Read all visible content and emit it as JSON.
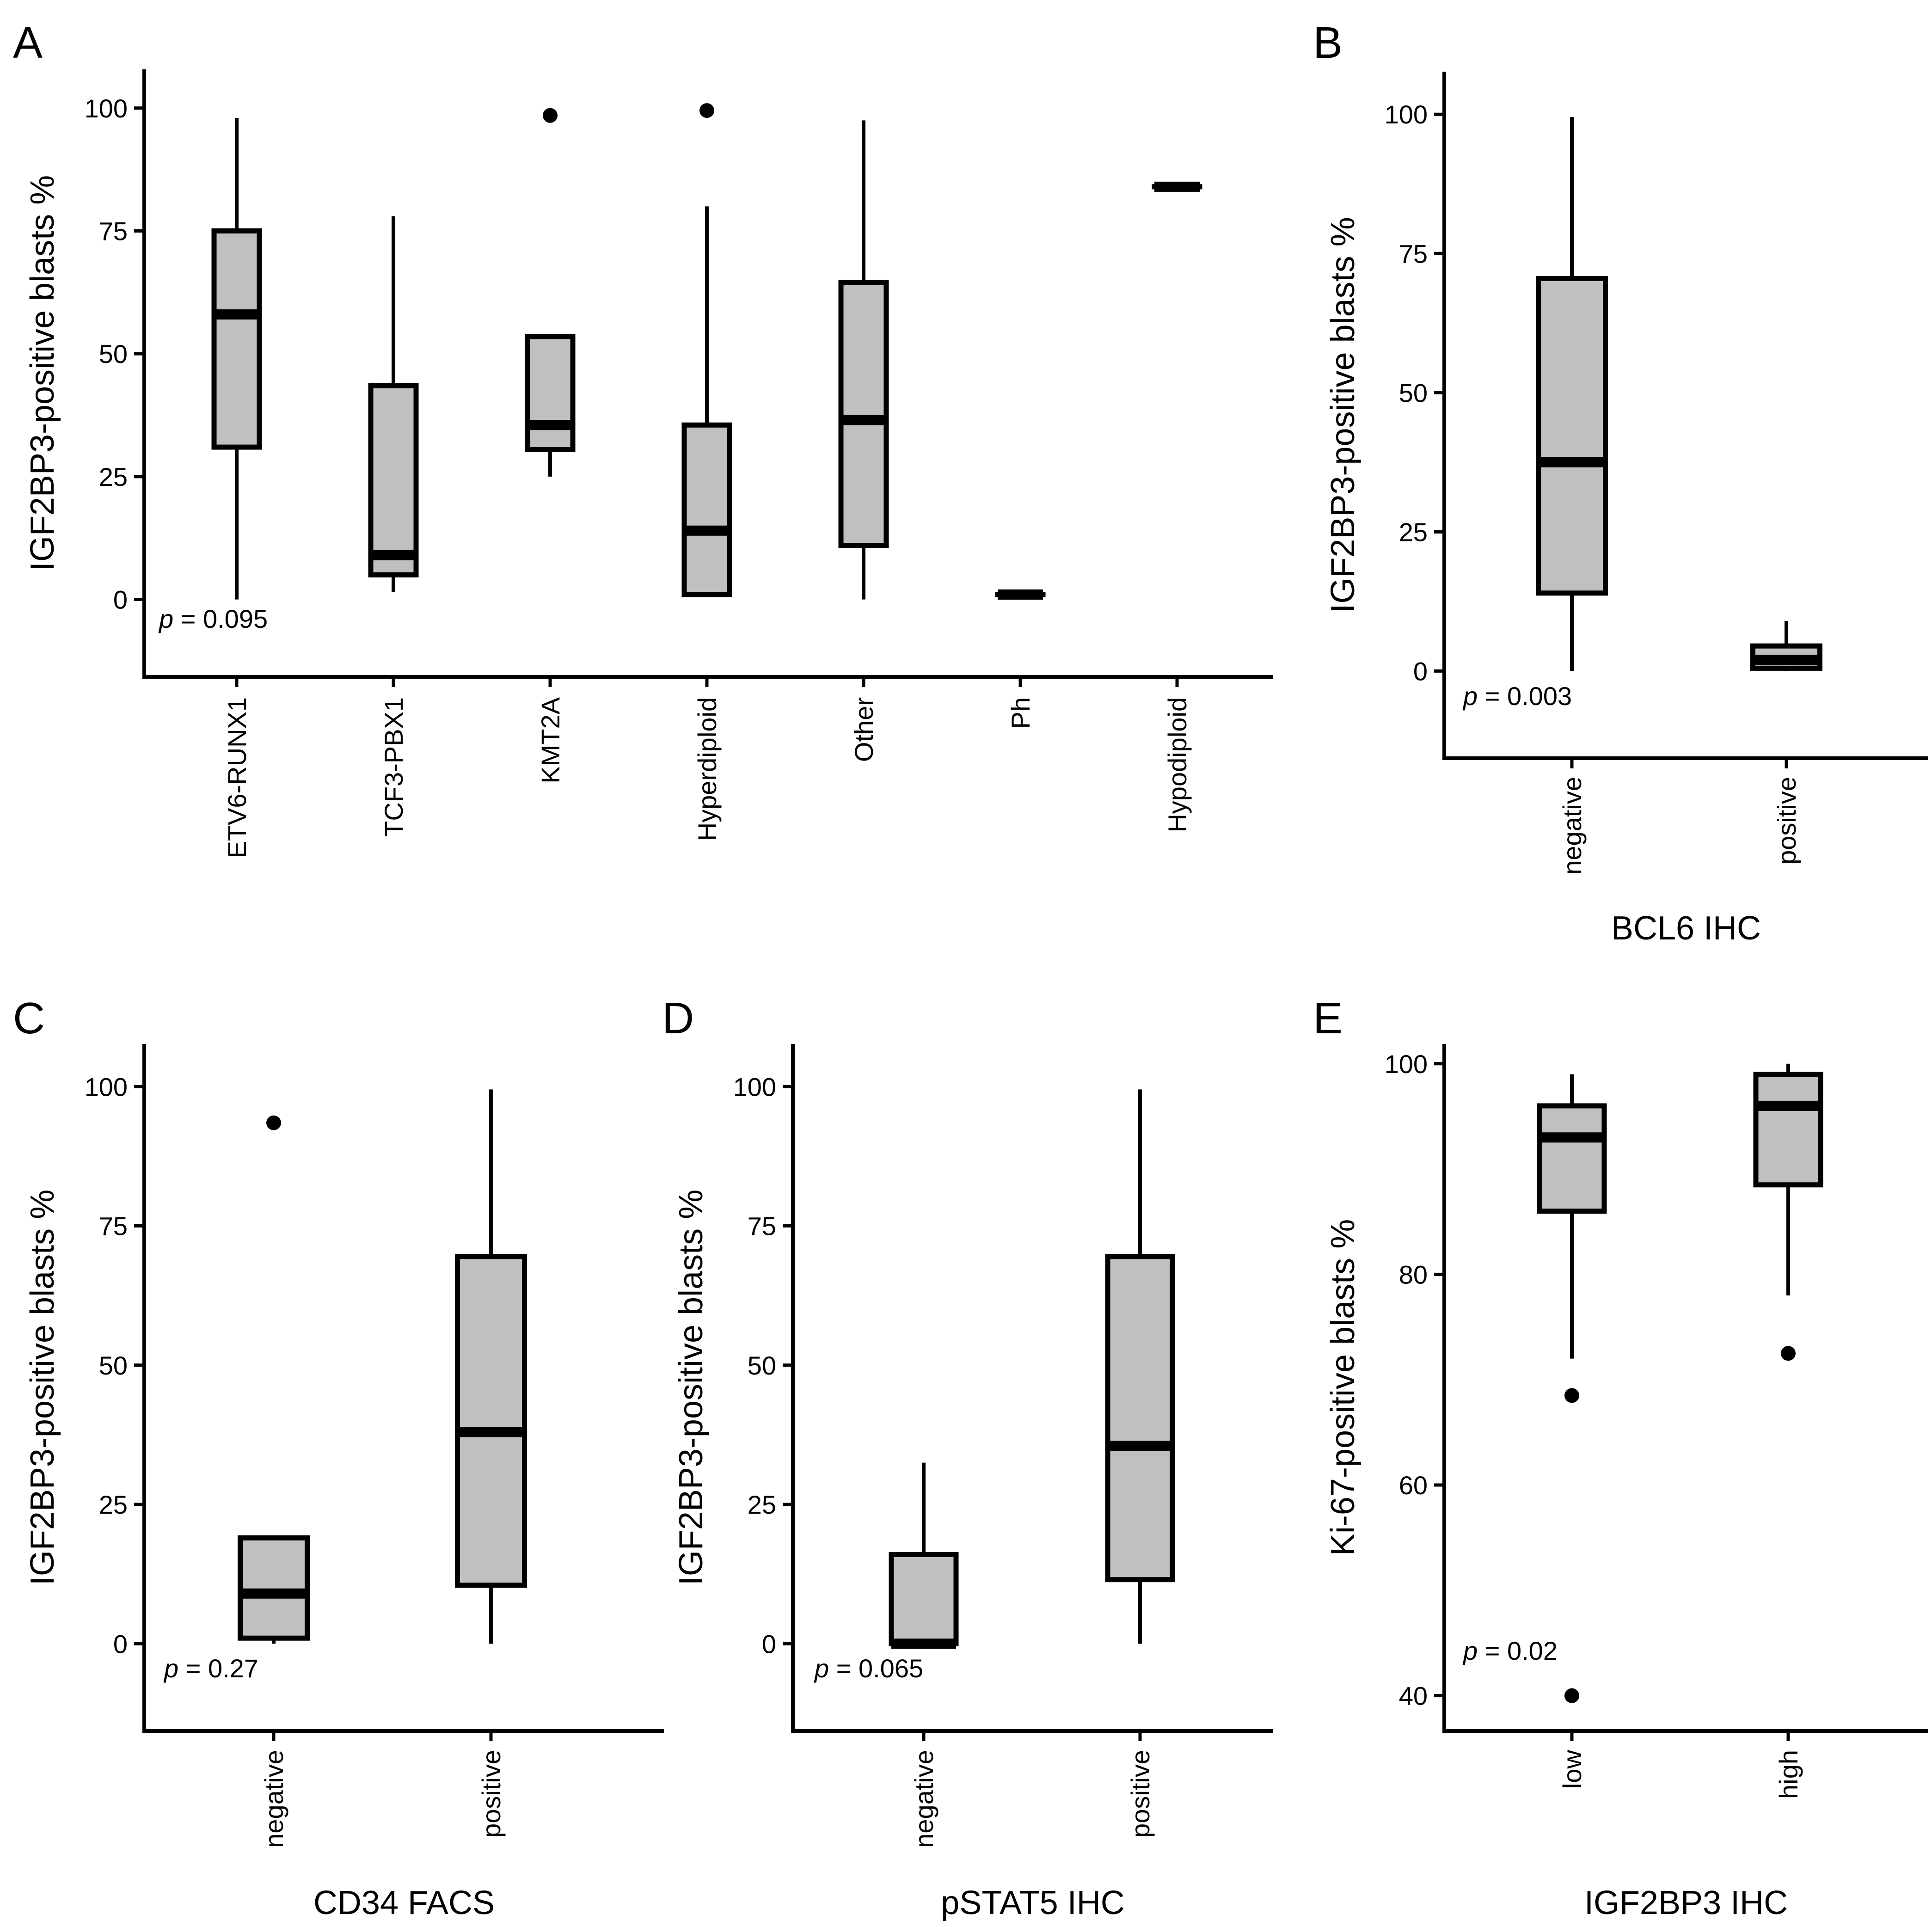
{
  "figure": {
    "panels": [
      "A",
      "B",
      "C",
      "D",
      "E"
    ]
  },
  "chart_data": [
    {
      "panel": "A",
      "type": "box",
      "ylabel": "IGF2BP3-positive blasts %",
      "xlabel": "",
      "ylim": [
        -15,
        106
      ],
      "yticks": [
        0,
        25,
        50,
        75,
        100
      ],
      "p_label": "p",
      "p_value": "= 0.095",
      "categories": [
        "ETV6-RUNX1",
        "TCF3-PBX1",
        "KMT2A",
        "Hyperdiploid",
        "Other",
        "Ph",
        "Hypodiploid"
      ],
      "boxes": [
        {
          "category": "ETV6-RUNX1",
          "lower_whisker": 0,
          "q1": 31,
          "median": 58,
          "q3": 75,
          "upper_whisker": 98,
          "outliers": []
        },
        {
          "category": "TCF3-PBX1",
          "lower_whisker": 1.5,
          "q1": 5,
          "median": 9,
          "q3": 43.5,
          "upper_whisker": 78,
          "outliers": []
        },
        {
          "category": "KMT2A",
          "lower_whisker": 25,
          "q1": 30.5,
          "median": 35.5,
          "q3": 53.5,
          "upper_whisker": 53.5,
          "outliers": [
            98.5
          ]
        },
        {
          "category": "Hyperdiploid",
          "lower_whisker": 0.5,
          "q1": 1,
          "median": 14,
          "q3": 35.5,
          "upper_whisker": 80,
          "outliers": [
            99.5
          ]
        },
        {
          "category": "Other",
          "lower_whisker": 0,
          "q1": 11,
          "median": 36.5,
          "q3": 64.5,
          "upper_whisker": 97.5,
          "outliers": []
        },
        {
          "category": "Ph",
          "lower_whisker": 1,
          "q1": 1,
          "median": 1,
          "q3": 1,
          "upper_whisker": 1,
          "outliers": []
        },
        {
          "category": "Hypodiploid",
          "lower_whisker": 84,
          "q1": 84,
          "median": 84,
          "q3": 84,
          "upper_whisker": 84,
          "outliers": []
        }
      ]
    },
    {
      "panel": "B",
      "type": "box",
      "ylabel": "IGF2BP3-positive blasts %",
      "xlabel": "BCL6 IHC",
      "ylim": [
        -15,
        106
      ],
      "yticks": [
        0,
        25,
        50,
        75,
        100
      ],
      "p_label": "p",
      "p_value": "= 0.003",
      "categories": [
        "negative",
        "positive"
      ],
      "boxes": [
        {
          "category": "negative",
          "lower_whisker": 0,
          "q1": 14,
          "median": 37.5,
          "q3": 70.5,
          "upper_whisker": 99.5,
          "outliers": []
        },
        {
          "category": "positive",
          "lower_whisker": 0,
          "q1": 0.5,
          "median": 2,
          "q3": 4.5,
          "upper_whisker": 9,
          "outliers": []
        }
      ]
    },
    {
      "panel": "C",
      "type": "box",
      "ylabel": "IGF2BP3-positive blasts %",
      "xlabel": "CD34 FACS",
      "ylim": [
        -15,
        106
      ],
      "yticks": [
        0,
        25,
        50,
        75,
        100
      ],
      "p_label": "p",
      "p_value": "= 0.27",
      "categories": [
        "negative",
        "positive"
      ],
      "boxes": [
        {
          "category": "negative",
          "lower_whisker": 0,
          "q1": 1,
          "median": 9,
          "q3": 19,
          "upper_whisker": 19,
          "outliers": [
            93.5
          ]
        },
        {
          "category": "positive",
          "lower_whisker": 0,
          "q1": 10.5,
          "median": 38,
          "q3": 69.5,
          "upper_whisker": 99.5,
          "outliers": []
        }
      ]
    },
    {
      "panel": "D",
      "type": "box",
      "ylabel": "IGF2BP3-positive blasts %",
      "xlabel": "pSTAT5 IHC",
      "ylim": [
        -15,
        106
      ],
      "yticks": [
        0,
        25,
        50,
        75,
        100
      ],
      "p_label": "p",
      "p_value": "= 0.065",
      "categories": [
        "negative",
        "positive"
      ],
      "boxes": [
        {
          "category": "negative",
          "lower_whisker": 0,
          "q1": 0,
          "median": 0,
          "q3": 16,
          "upper_whisker": 32.5,
          "outliers": []
        },
        {
          "category": "positive",
          "lower_whisker": 0,
          "q1": 11.5,
          "median": 35.5,
          "q3": 69.5,
          "upper_whisker": 99.5,
          "outliers": []
        }
      ]
    },
    {
      "panel": "E",
      "type": "box",
      "ylabel": "Ki-67-positive blasts %",
      "xlabel": "IGF2BP3 IHC",
      "ylim": [
        37,
        101
      ],
      "yticks": [
        40,
        60,
        80,
        100
      ],
      "p_label": "p",
      "p_value": "= 0.02",
      "categories": [
        "low",
        "high"
      ],
      "boxes": [
        {
          "category": "low",
          "lower_whisker": 72,
          "q1": 86,
          "median": 93,
          "q3": 96,
          "upper_whisker": 99,
          "outliers": [
            68.5,
            40
          ]
        },
        {
          "category": "high",
          "lower_whisker": 78,
          "q1": 88.5,
          "median": 96,
          "q3": 99,
          "upper_whisker": 100,
          "outliers": [
            72.5
          ]
        }
      ]
    }
  ]
}
